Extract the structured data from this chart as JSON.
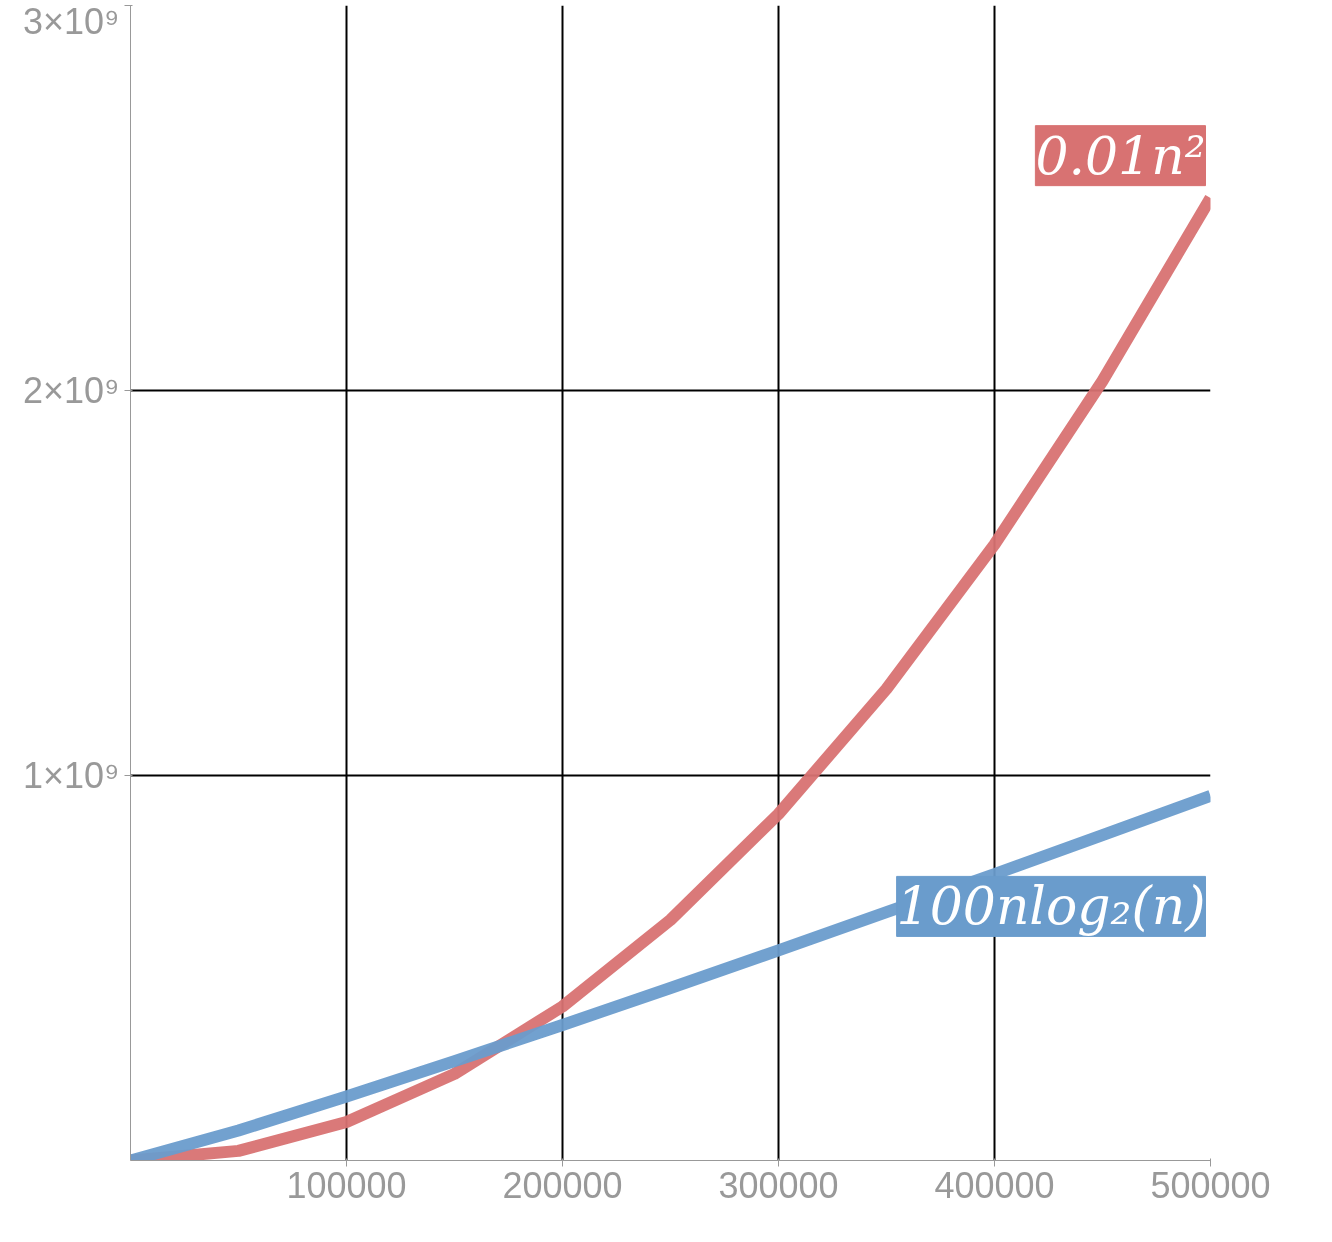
{
  "chart_data": {
    "type": "line",
    "x": [
      0,
      50000,
      100000,
      150000,
      200000,
      250000,
      300000,
      350000,
      400000,
      450000,
      500000
    ],
    "series": [
      {
        "name": "0.01n²",
        "color": "#d87272",
        "values": [
          0,
          25000000,
          100000000,
          225000000,
          400000000,
          625000000,
          900000000,
          1225000000,
          1600000000,
          2025000000,
          2500000000
        ]
      },
      {
        "name": "100nlog₂(n)",
        "color": "#6a9ccc",
        "values": [
          0,
          78000000,
          166000000,
          258000000,
          352000000,
          448000000,
          546000000,
          645000000,
          744000000,
          845000000,
          947000000
        ]
      }
    ],
    "xlim": [
      0,
      500000
    ],
    "xticks": [
      100000,
      200000,
      300000,
      400000,
      500000
    ],
    "ylim": [
      0,
      3000000000
    ],
    "yticks": [
      {
        "value": 1000000000,
        "label": "1×10⁹"
      },
      {
        "value": 2000000000,
        "label": "2×10⁹"
      },
      {
        "value": 3000000000,
        "label": "3×10⁹"
      }
    ],
    "grid": true,
    "legend": false,
    "line_style": "solid",
    "marker": "none"
  }
}
